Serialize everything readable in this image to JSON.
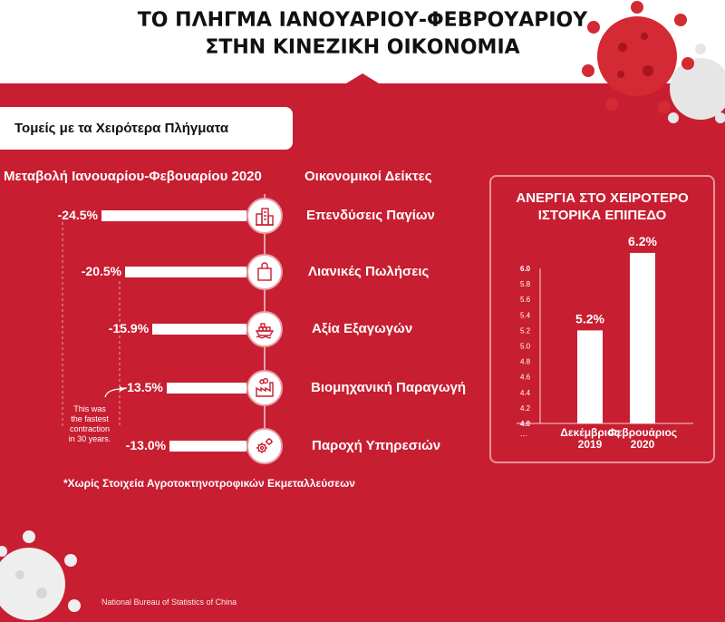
{
  "title_line1": "ΤΟ ΠΛΗΓΜΑ ΙΑΝΟΥΑΡΙΟΥ-ΦΕΒΡΟΥΑΡΙΟΥ",
  "title_line2": "ΣΤΗΝ ΚΙΝΕΖΙΚΗ ΟΙΚΟΝΟΜΙΑ",
  "sector_box": "Τομείς με τα Χειρότερα Πλήγματα",
  "col_change_header": "Μεταβολή Ιανουαρίου-Φεβουαρίου 2020",
  "col_indicator_header": "Οικονομικοί Δείκτες",
  "annotation": [
    "This was",
    "the fastest",
    "contraction",
    "in 30 years."
  ],
  "footnote": "*Χωρίς Στοιχεία Αγροτοκτηνοτροφικών Εκμεταλλεύσεων",
  "source": "National Bureau of Statistics of China",
  "colors": {
    "background": "#c81e31",
    "bars": "#ffffff",
    "panel_border": "#e8929c",
    "virus_red": "#d42a33",
    "virus_white": "#e9e9e9"
  },
  "chart_data": [
    {
      "type": "bar",
      "orientation": "horizontal",
      "categories": [
        "Επενδύσεις Παγίων",
        "Λιανικές Πωλήσεις",
        "Αξία Εξαγωγών",
        "Βιομηχανική Παραγωγή",
        "Παροχή Υπηρεσιών"
      ],
      "values": [
        -24.5,
        -20.5,
        -15.9,
        -13.5,
        -13.0
      ],
      "value_labels": [
        "-24.5%",
        "-20.5%",
        "-15.9%",
        "-13.5%",
        "-13.0%"
      ],
      "icons": [
        "buildings-icon",
        "shopping-bag-icon",
        "cargo-ship-icon",
        "factory-icon",
        "gears-icon"
      ],
      "title": "Μεταβολή Ιανουαρίου-Φεβουαρίου 2020",
      "unit": "%"
    },
    {
      "type": "bar",
      "title": "ΑΝΕΡΓΙΑ ΣΤΟ ΧΕΙΡΟΤΕΡΟ ΙΣΤΟΡΙΚΑ ΕΠΙΠΕΔΟ",
      "title_lines": [
        "ΑΝΕΡΓΙΑ ΣΤΟ ΧΕΙΡΟΤΕΡΟ",
        "ΙΣΤΟΡΙΚΑ ΕΠΙΠΕΔΟ"
      ],
      "categories": [
        [
          "Δεκέμβριος",
          "2019"
        ],
        [
          "Φεβρουάριος",
          "2020"
        ]
      ],
      "values": [
        5.2,
        6.2
      ],
      "value_labels": [
        "5.2%",
        "6.2%"
      ],
      "ylim": [
        4.0,
        6.0
      ],
      "yticks": [
        "4.0",
        "4.2",
        "4.4",
        "4.6",
        "4.8",
        "5.0",
        "5.2",
        "5.4",
        "5.6",
        "5.8",
        "6.0"
      ],
      "axis_break_label": "...",
      "grid": false
    }
  ]
}
